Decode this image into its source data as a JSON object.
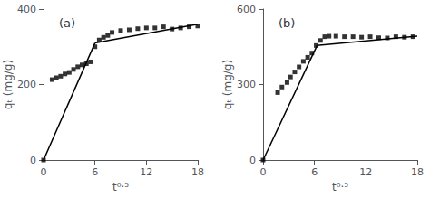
{
  "chart_data": [
    {
      "type": "scatter",
      "annotation": "(a)",
      "xlabel": "t⁰·⁵",
      "ylabel": "qₜ (mg/g)",
      "xlim": [
        0,
        18
      ],
      "ylim": [
        0,
        400
      ],
      "xticks": [
        0,
        6,
        12,
        18
      ],
      "yticks": [
        0,
        200,
        400
      ],
      "grid": false,
      "series": [
        {
          "type": "scatter",
          "marker": "square",
          "color": "black",
          "x": [
            0.0,
            1.0,
            1.5,
            2.0,
            2.5,
            3.0,
            3.5,
            4.0,
            4.5,
            5.0,
            5.5,
            6.0,
            6.5,
            7.0,
            7.5,
            8.0,
            9.0,
            10.0,
            11.0,
            12.0,
            13.0,
            14.0,
            15.0,
            16.0,
            17.0,
            18.0
          ],
          "values": [
            0,
            213,
            218,
            222,
            228,
            232,
            240,
            247,
            252,
            255,
            260,
            300,
            318,
            325,
            330,
            338,
            343,
            345,
            348,
            350,
            350,
            353,
            347,
            350,
            353,
            355
          ]
        },
        {
          "type": "line",
          "color": "black",
          "x": [
            0,
            6.0
          ],
          "values": [
            0,
            310
          ]
        },
        {
          "type": "line",
          "color": "black",
          "x": [
            6.0,
            18
          ],
          "values": [
            310,
            360
          ]
        }
      ]
    },
    {
      "type": "scatter",
      "annotation": "(b)",
      "xlabel": "t⁰·⁵",
      "ylabel": "qₜ (mg/g)",
      "xlim": [
        0,
        18
      ],
      "ylim": [
        0,
        600
      ],
      "xticks": [
        0,
        6,
        12,
        18
      ],
      "yticks": [
        0,
        300,
        600
      ],
      "grid": false,
      "series": [
        {
          "type": "scatter",
          "marker": "square",
          "color": "black",
          "x": [
            0.0,
            1.7,
            2.2,
            2.8,
            3.2,
            3.7,
            4.2,
            4.7,
            5.2,
            5.7,
            6.2,
            6.7,
            7.2,
            7.7,
            8.5,
            9.5,
            10.5,
            11.5,
            12.5,
            13.5,
            14.5,
            15.5,
            16.5,
            17.5
          ],
          "values": [
            0,
            268,
            290,
            308,
            330,
            350,
            370,
            392,
            408,
            425,
            455,
            475,
            490,
            492,
            492,
            490,
            490,
            488,
            490,
            486,
            485,
            490,
            488,
            490
          ]
        },
        {
          "type": "line",
          "color": "black",
          "x": [
            0,
            6.3
          ],
          "values": [
            0,
            455
          ]
        },
        {
          "type": "line",
          "color": "black",
          "x": [
            6.3,
            18
          ],
          "values": [
            455,
            492
          ]
        }
      ]
    }
  ]
}
